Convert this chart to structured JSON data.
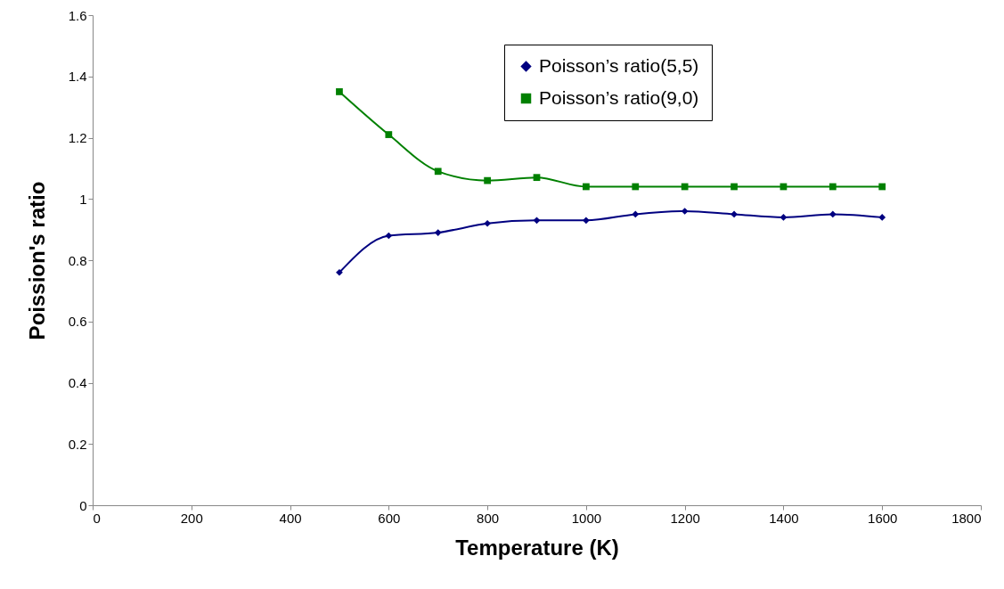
{
  "chart_data": {
    "type": "line",
    "xlabel": "Temperature (K)",
    "ylabel": "Poission's ratio",
    "x": [
      500,
      600,
      700,
      800,
      900,
      1000,
      1100,
      1200,
      1300,
      1400,
      1500,
      1600
    ],
    "series": [
      {
        "name": "Poisson’s ratio(5,5)",
        "color": "#000080",
        "marker": "diamond",
        "values": [
          0.76,
          0.88,
          0.89,
          0.92,
          0.93,
          0.93,
          0.95,
          0.96,
          0.95,
          0.94,
          0.95,
          0.94
        ]
      },
      {
        "name": "Poisson’s ratio(9,0)",
        "color": "#008000",
        "marker": "square",
        "values": [
          1.35,
          1.21,
          1.09,
          1.06,
          1.07,
          1.04,
          1.04,
          1.04,
          1.04,
          1.04,
          1.04,
          1.04
        ]
      }
    ],
    "xlim": [
      0,
      1800
    ],
    "xticks": [
      0,
      200,
      400,
      600,
      800,
      1000,
      1200,
      1400,
      1600,
      1800
    ],
    "ylim": [
      0,
      1.6
    ],
    "yticks": [
      0,
      0.2,
      0.4,
      0.6,
      0.8,
      1,
      1.2,
      1.4,
      1.6
    ],
    "grid": false,
    "legend": "top right",
    "line_style": "solid"
  }
}
